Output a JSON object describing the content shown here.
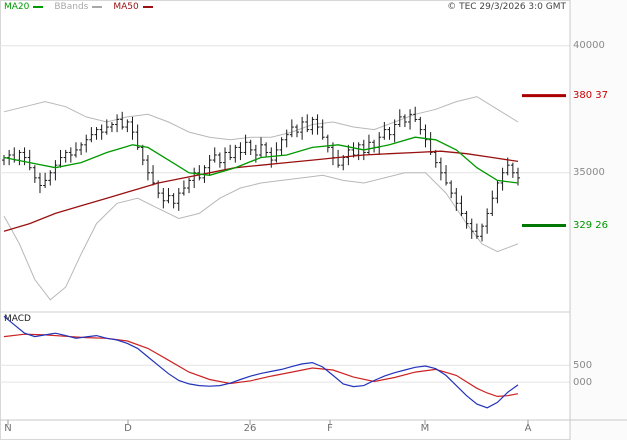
{
  "header": {
    "copyright": "© TEC 29/3/2026 3:0 GMT"
  },
  "chart_data": {
    "type": "candlestick",
    "title": "",
    "legend": [
      {
        "label": "MA20",
        "color": "#009900"
      },
      {
        "label": "BBands",
        "color": "#a8a8a8"
      },
      {
        "label": "MA50",
        "color": "#991111"
      }
    ],
    "price_tick_labels": [
      {
        "text": "40000",
        "value": 400
      },
      {
        "text": "35000",
        "value": 350
      }
    ],
    "levels": [
      {
        "text": "380 37",
        "value": 380.37,
        "color": "#cc0000",
        "line_color": "#aa0000"
      },
      {
        "text": "329 26",
        "value": 329.26,
        "color": "#009900",
        "line_color": "#007700"
      }
    ],
    "x_tick_labels": [
      "N",
      "D",
      "26",
      "F",
      "M",
      "A"
    ],
    "price_ylim": [
      296,
      418
    ],
    "candles": [
      [
        355,
        357,
        353,
        356
      ],
      [
        356,
        359,
        353,
        357
      ],
      [
        357,
        360,
        354,
        355
      ],
      [
        355,
        359,
        353,
        358
      ],
      [
        358,
        360,
        353,
        356
      ],
      [
        356,
        359,
        351,
        352
      ],
      [
        352,
        353,
        346,
        348
      ],
      [
        348,
        350,
        342,
        345
      ],
      [
        345,
        350,
        344,
        347
      ],
      [
        347,
        351,
        345,
        350
      ],
      [
        350,
        355,
        347,
        353
      ],
      [
        353,
        359,
        352,
        356
      ],
      [
        356,
        359,
        354,
        358
      ],
      [
        358,
        360,
        354,
        357
      ],
      [
        357,
        362,
        356,
        359
      ],
      [
        359,
        362,
        357,
        361
      ],
      [
        361,
        365,
        358,
        363
      ],
      [
        363,
        368,
        362,
        365
      ],
      [
        365,
        368,
        363,
        367
      ],
      [
        367,
        369,
        363,
        366
      ],
      [
        366,
        371,
        365,
        368
      ],
      [
        368,
        370,
        366,
        369
      ],
      [
        369,
        373,
        366,
        371
      ],
      [
        371,
        374,
        367,
        368
      ],
      [
        368,
        371,
        366,
        370
      ],
      [
        370,
        372,
        363,
        366
      ],
      [
        366,
        369,
        359,
        360
      ],
      [
        360,
        361,
        353,
        355
      ],
      [
        355,
        357,
        347,
        350
      ],
      [
        350,
        353,
        345,
        346
      ],
      [
        346,
        347,
        340,
        342
      ],
      [
        342,
        344,
        336,
        339
      ],
      [
        339,
        344,
        338,
        341
      ],
      [
        341,
        342,
        336,
        338
      ],
      [
        338,
        344,
        335,
        342
      ],
      [
        342,
        347,
        341,
        344
      ],
      [
        344,
        348,
        342,
        347
      ],
      [
        347,
        352,
        344,
        350
      ],
      [
        350,
        353,
        347,
        348
      ],
      [
        348,
        353,
        346,
        352
      ],
      [
        352,
        357,
        349,
        355
      ],
      [
        355,
        360,
        354,
        357
      ],
      [
        357,
        358,
        352,
        354
      ],
      [
        354,
        360,
        351,
        358
      ],
      [
        358,
        361,
        355,
        356
      ],
      [
        356,
        361,
        354,
        360
      ],
      [
        360,
        362,
        355,
        358
      ],
      [
        358,
        365,
        357,
        362
      ],
      [
        362,
        363,
        357,
        359
      ],
      [
        359,
        361,
        354,
        357
      ],
      [
        357,
        364,
        356,
        361
      ],
      [
        361,
        362,
        356,
        358
      ],
      [
        358,
        360,
        352,
        355
      ],
      [
        355,
        362,
        354,
        359
      ],
      [
        359,
        364,
        357,
        363
      ],
      [
        363,
        367,
        360,
        365
      ],
      [
        365,
        371,
        364,
        368
      ],
      [
        368,
        369,
        364,
        366
      ],
      [
        366,
        372,
        363,
        370
      ],
      [
        370,
        373,
        366,
        367
      ],
      [
        367,
        372,
        365,
        371
      ],
      [
        371,
        373,
        365,
        368
      ],
      [
        368,
        371,
        363,
        364
      ],
      [
        364,
        365,
        358,
        360
      ],
      [
        360,
        362,
        353,
        356
      ],
      [
        356,
        359,
        352,
        353
      ],
      [
        353,
        357,
        351,
        356
      ],
      [
        356,
        361,
        353,
        359
      ],
      [
        359,
        362,
        356,
        357
      ],
      [
        357,
        362,
        355,
        361
      ],
      [
        361,
        363,
        355,
        358
      ],
      [
        358,
        365,
        357,
        362
      ],
      [
        362,
        363,
        358,
        360
      ],
      [
        360,
        366,
        357,
        364
      ],
      [
        364,
        370,
        363,
        367
      ],
      [
        367,
        368,
        363,
        365
      ],
      [
        365,
        371,
        362,
        369
      ],
      [
        369,
        375,
        368,
        372
      ],
      [
        372,
        373,
        368,
        370
      ],
      [
        370,
        375,
        367,
        373
      ],
      [
        373,
        376,
        370,
        371
      ],
      [
        371,
        372,
        365,
        367
      ],
      [
        367,
        369,
        360,
        363
      ],
      [
        363,
        366,
        357,
        358
      ],
      [
        358,
        359,
        352,
        354
      ],
      [
        354,
        356,
        347,
        350
      ],
      [
        350,
        353,
        345,
        346
      ],
      [
        346,
        347,
        340,
        342
      ],
      [
        342,
        344,
        335,
        338
      ],
      [
        338,
        341,
        333,
        334
      ],
      [
        334,
        335,
        328,
        330
      ],
      [
        330,
        332,
        324,
        327
      ],
      [
        327,
        330,
        324,
        325
      ],
      [
        325,
        330,
        323,
        329
      ],
      [
        329,
        336,
        326,
        334
      ],
      [
        334,
        343,
        333,
        340
      ],
      [
        340,
        347,
        338,
        346
      ],
      [
        346,
        352,
        343,
        350
      ],
      [
        350,
        356,
        349,
        353
      ],
      [
        353,
        354,
        348,
        350
      ],
      [
        350,
        352,
        345,
        348
      ]
    ],
    "ma20": [
      [
        0,
        356
      ],
      [
        5,
        354
      ],
      [
        10,
        352
      ],
      [
        15,
        354
      ],
      [
        20,
        358
      ],
      [
        25,
        361
      ],
      [
        28,
        360
      ],
      [
        32,
        355
      ],
      [
        36,
        350
      ],
      [
        40,
        349
      ],
      [
        45,
        352
      ],
      [
        50,
        356
      ],
      [
        55,
        357
      ],
      [
        60,
        360
      ],
      [
        65,
        361
      ],
      [
        70,
        359
      ],
      [
        75,
        361
      ],
      [
        80,
        364
      ],
      [
        84,
        363
      ],
      [
        88,
        359
      ],
      [
        92,
        352
      ],
      [
        96,
        347
      ],
      [
        100,
        346
      ]
    ],
    "ma50": [
      [
        0,
        327
      ],
      [
        5,
        330
      ],
      [
        10,
        334
      ],
      [
        15,
        337
      ],
      [
        20,
        340
      ],
      [
        25,
        343
      ],
      [
        30,
        346
      ],
      [
        35,
        348
      ],
      [
        40,
        350
      ],
      [
        45,
        352
      ],
      [
        50,
        353
      ],
      [
        55,
        354
      ],
      [
        60,
        355
      ],
      [
        65,
        356
      ],
      [
        70,
        357
      ],
      [
        75,
        357.5
      ],
      [
        80,
        358
      ],
      [
        85,
        358.5
      ],
      [
        90,
        357.5
      ],
      [
        95,
        356
      ],
      [
        100,
        354.5
      ]
    ],
    "bb_upper": [
      [
        0,
        374
      ],
      [
        4,
        376
      ],
      [
        8,
        378
      ],
      [
        12,
        376
      ],
      [
        16,
        372
      ],
      [
        20,
        370
      ],
      [
        24,
        372
      ],
      [
        28,
        373
      ],
      [
        32,
        370
      ],
      [
        36,
        366
      ],
      [
        40,
        364
      ],
      [
        44,
        363
      ],
      [
        48,
        364
      ],
      [
        52,
        364
      ],
      [
        56,
        366
      ],
      [
        60,
        369
      ],
      [
        64,
        370
      ],
      [
        68,
        368
      ],
      [
        72,
        367
      ],
      [
        76,
        370
      ],
      [
        80,
        373
      ],
      [
        84,
        375
      ],
      [
        88,
        378
      ],
      [
        92,
        380
      ],
      [
        96,
        375
      ],
      [
        100,
        370
      ]
    ],
    "bb_lower": [
      [
        0,
        333
      ],
      [
        3,
        322
      ],
      [
        6,
        308
      ],
      [
        9,
        300
      ],
      [
        12,
        305
      ],
      [
        15,
        318
      ],
      [
        18,
        330
      ],
      [
        22,
        338
      ],
      [
        26,
        340
      ],
      [
        30,
        336
      ],
      [
        34,
        332
      ],
      [
        38,
        334
      ],
      [
        42,
        340
      ],
      [
        46,
        344
      ],
      [
        50,
        346
      ],
      [
        54,
        347
      ],
      [
        58,
        348
      ],
      [
        62,
        349
      ],
      [
        66,
        347
      ],
      [
        70,
        346
      ],
      [
        74,
        348
      ],
      [
        78,
        350
      ],
      [
        82,
        350
      ],
      [
        86,
        342
      ],
      [
        90,
        330
      ],
      [
        93,
        322
      ],
      [
        96,
        319
      ],
      [
        100,
        322
      ]
    ],
    "macd": {
      "label": "MACD",
      "tick_labels": [
        {
          "text": "500",
          "value": 5
        },
        {
          "text": "000",
          "value": 0
        }
      ],
      "ylim": [
        -11.2,
        19.6
      ],
      "line": [
        [
          0,
          19.5
        ],
        [
          2,
          17
        ],
        [
          4,
          14.5
        ],
        [
          6,
          13.5
        ],
        [
          8,
          14
        ],
        [
          10,
          14.5
        ],
        [
          12,
          13.8
        ],
        [
          14,
          13
        ],
        [
          16,
          13.4
        ],
        [
          18,
          13.8
        ],
        [
          20,
          13
        ],
        [
          22,
          12.5
        ],
        [
          24,
          11.5
        ],
        [
          26,
          10
        ],
        [
          28,
          7.5
        ],
        [
          30,
          5
        ],
        [
          32,
          2.5
        ],
        [
          34,
          0.5
        ],
        [
          36,
          -0.5
        ],
        [
          38,
          -1
        ],
        [
          40,
          -1.2
        ],
        [
          42,
          -1
        ],
        [
          44,
          -0.3
        ],
        [
          46,
          0.8
        ],
        [
          48,
          1.8
        ],
        [
          50,
          2.6
        ],
        [
          52,
          3.2
        ],
        [
          54,
          3.8
        ],
        [
          56,
          4.6
        ],
        [
          58,
          5.4
        ],
        [
          60,
          5.8
        ],
        [
          62,
          4.5
        ],
        [
          64,
          2
        ],
        [
          66,
          -0.5
        ],
        [
          68,
          -1.3
        ],
        [
          70,
          -1
        ],
        [
          72,
          0.5
        ],
        [
          74,
          1.8
        ],
        [
          76,
          2.8
        ],
        [
          78,
          3.6
        ],
        [
          80,
          4.4
        ],
        [
          82,
          4.8
        ],
        [
          84,
          4
        ],
        [
          86,
          2
        ],
        [
          88,
          -1
        ],
        [
          90,
          -4
        ],
        [
          92,
          -6.5
        ],
        [
          94,
          -7.6
        ],
        [
          96,
          -6
        ],
        [
          98,
          -3
        ],
        [
          100,
          -0.8
        ]
      ],
      "signal": [
        [
          0,
          13.5
        ],
        [
          4,
          14.2
        ],
        [
          8,
          14
        ],
        [
          12,
          13.6
        ],
        [
          16,
          13.2
        ],
        [
          20,
          13
        ],
        [
          24,
          12.2
        ],
        [
          28,
          10
        ],
        [
          32,
          6.5
        ],
        [
          36,
          3
        ],
        [
          40,
          0.8
        ],
        [
          44,
          -0.4
        ],
        [
          48,
          0.4
        ],
        [
          52,
          1.8
        ],
        [
          56,
          3
        ],
        [
          60,
          4.2
        ],
        [
          64,
          3.6
        ],
        [
          68,
          1.5
        ],
        [
          72,
          0.2
        ],
        [
          76,
          1.4
        ],
        [
          80,
          3
        ],
        [
          84,
          3.8
        ],
        [
          88,
          2
        ],
        [
          92,
          -1.8
        ],
        [
          94,
          -3.2
        ],
        [
          96,
          -4.2
        ],
        [
          98,
          -4
        ],
        [
          100,
          -3.4
        ]
      ]
    },
    "colors": {
      "candle": "#1a1a1a",
      "ma20": "#009900",
      "ma50": "#991111",
      "bbands": "#b8b8b8",
      "macd_line": "#2233bb",
      "macd_signal": "#cc2222",
      "grid": "#e4e4e4",
      "frame": "#c8c8c8"
    }
  }
}
